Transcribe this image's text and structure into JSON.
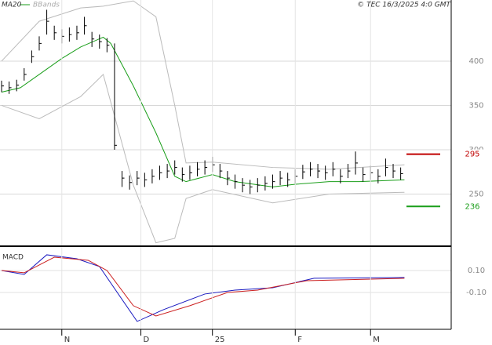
{
  "chart_data": [
    {
      "type": "ohlc",
      "copyright": "© TEC 16/3/2025 4:0 GMT",
      "color": "#000000",
      "x": [
        0,
        2,
        4,
        6,
        8,
        10,
        12,
        14,
        16,
        18,
        20,
        22,
        24,
        26,
        28,
        30,
        32,
        34,
        36,
        38,
        40,
        42,
        44,
        46,
        48,
        50,
        52,
        54,
        56,
        58,
        60,
        62,
        64,
        66,
        68,
        70,
        72,
        74,
        76,
        78,
        80,
        82,
        84,
        86,
        88,
        90,
        92,
        94,
        96,
        98,
        100,
        102,
        104,
        106
      ],
      "high": [
        378,
        377,
        379,
        392,
        412,
        428,
        458,
        440,
        436,
        438,
        440,
        450,
        433,
        430,
        426,
        420,
        276,
        271,
        276,
        274,
        278,
        282,
        284,
        288,
        280,
        282,
        286,
        288,
        292,
        284,
        276,
        272,
        268,
        266,
        268,
        270,
        272,
        276,
        274,
        278,
        283,
        286,
        284,
        282,
        286,
        278,
        284,
        298,
        280,
        282,
        278,
        290,
        284,
        280
      ],
      "low": [
        365,
        363,
        366,
        378,
        398,
        412,
        430,
        424,
        420,
        422,
        424,
        430,
        416,
        414,
        410,
        300,
        258,
        255,
        260,
        258,
        262,
        266,
        268,
        272,
        264,
        266,
        270,
        272,
        275,
        268,
        260,
        256,
        252,
        250,
        252,
        254,
        256,
        260,
        258,
        262,
        267,
        270,
        268,
        266,
        270,
        262,
        268,
        272,
        264,
        266,
        262,
        270,
        268,
        266
      ],
      "close": [
        372,
        370,
        373,
        385,
        405,
        420,
        445,
        432,
        428,
        430,
        432,
        440,
        425,
        422,
        418,
        305,
        268,
        263,
        268,
        266,
        270,
        274,
        276,
        280,
        272,
        274,
        278,
        280,
        283,
        276,
        268,
        264,
        260,
        258,
        260,
        262,
        264,
        268,
        266,
        270,
        275,
        278,
        276,
        274,
        278,
        270,
        276,
        285,
        272,
        274,
        270,
        280,
        276,
        273
      ],
      "series": [
        {
          "name": "MA20",
          "color": "#1a9e1a",
          "x": [
            0,
            5,
            10,
            16,
            21,
            27,
            29,
            35,
            41,
            46,
            49,
            56,
            62,
            72,
            78,
            87,
            95,
            107
          ],
          "values": [
            365,
            370,
            385,
            403,
            416,
            427,
            420,
            372,
            319,
            270,
            264,
            272,
            264,
            258,
            261,
            264,
            264,
            266
          ]
        }
      ],
      "bands": {
        "name": "BBands",
        "color": "#bbbbbb",
        "x": [
          0,
          10,
          21,
          27,
          35,
          41,
          46,
          49,
          56,
          72,
          87,
          107
        ],
        "upper": [
          400,
          445,
          460,
          462,
          468,
          450,
          350,
          285,
          286,
          280,
          278,
          283
        ],
        "lower": [
          350,
          335,
          360,
          385,
          260,
          195,
          200,
          245,
          255,
          240,
          250,
          252
        ]
      },
      "annotations": [
        {
          "value": 295,
          "color": "#c00000"
        },
        {
          "value": 236,
          "color": "#1a9e1a"
        }
      ],
      "xlim": [
        0,
        119
      ],
      "xticks": [
        {
          "value": 16,
          "label": "N"
        },
        {
          "value": 37,
          "label": "D"
        },
        {
          "value": 56,
          "label": "25"
        },
        {
          "value": 78,
          "label": "F"
        },
        {
          "value": 98,
          "label": "M"
        }
      ],
      "ylim": [
        192,
        469
      ],
      "yticks": [
        250,
        300,
        350,
        400
      ]
    },
    {
      "type": "line",
      "title": "MACD",
      "series": [
        {
          "color": "#1a1ac0",
          "x": [
            0,
            6,
            12,
            20,
            26,
            36,
            43,
            54,
            62,
            72,
            83,
            107
          ],
          "values": [
            0.1,
            0.064,
            0.243,
            0.207,
            0.136,
            -0.364,
            -0.257,
            -0.114,
            -0.079,
            -0.057,
            0.029,
            0.036
          ]
        },
        {
          "color": "#cc2020",
          "x": [
            0,
            6,
            14,
            23,
            28,
            35,
            41,
            50,
            60,
            68,
            81,
            107
          ],
          "values": [
            0.1,
            0.079,
            0.221,
            0.193,
            0.1,
            -0.221,
            -0.314,
            -0.221,
            -0.1,
            -0.079,
            0.007,
            0.029
          ]
        }
      ],
      "ylim": [
        -0.436,
        0.307
      ],
      "yticks": [
        {
          "value": 0.1,
          "label": "0.10"
        },
        {
          "value": -0.1,
          "label": "-0.10"
        }
      ]
    }
  ]
}
